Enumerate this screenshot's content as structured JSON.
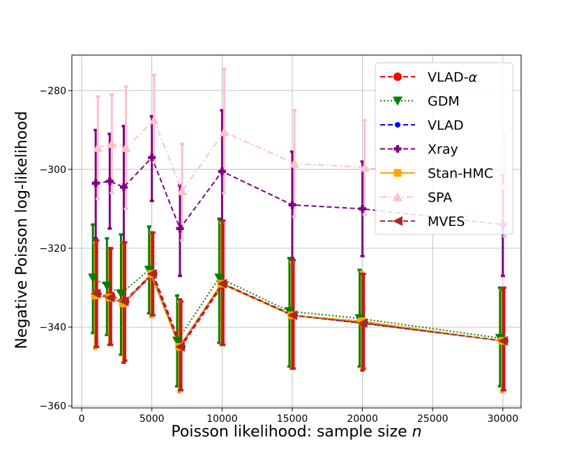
{
  "chart_data": {
    "type": "line",
    "title": "",
    "xlabel": "Poisson likelihood: sample size n",
    "xlabel_parts": [
      "Poisson likelihood: sample size ",
      "n"
    ],
    "ylabel": "Negative Poisson log-likelihood",
    "xlim": [
      -700,
      31300
    ],
    "ylim": [
      -360.5,
      -271
    ],
    "xticks": [
      0,
      5000,
      10000,
      15000,
      20000,
      25000,
      30000
    ],
    "xtick_labels": [
      "0",
      "5000",
      "10000",
      "15000",
      "20000",
      "25000",
      "30000"
    ],
    "yticks": [
      -360,
      -340,
      -320,
      -300,
      -280
    ],
    "ytick_labels": [
      "−360",
      "−340",
      "−320",
      "−300",
      "−280"
    ],
    "grid": true,
    "legend_position": "top-right",
    "x": [
      1000,
      2000,
      3000,
      5000,
      7000,
      10000,
      15000,
      20000,
      30000
    ],
    "series": [
      {
        "name": "VLAD-α",
        "legend_parts": [
          "VLAD-",
          "α"
        ],
        "color": "#ff0000",
        "marker": "circle",
        "linestyle": "dash",
        "offset": 100,
        "values": [
          -331.5,
          -332.0,
          -333.5,
          -326.5,
          -345.0,
          -329.0,
          -337.0,
          -338.8,
          -343.5
        ],
        "lower": [
          -345.0,
          -344.5,
          -348.5,
          -337.0,
          -356.0,
          -344.5,
          -350.5,
          -350.5,
          -356.0
        ],
        "upper": [
          -318.0,
          -320.0,
          -318.5,
          -316.0,
          -333.5,
          -313.0,
          -323.0,
          -326.5,
          -330.0
        ]
      },
      {
        "name": "GDM",
        "color": "#008000",
        "marker": "triangle-down",
        "linestyle": "dot",
        "offset": -200,
        "values": [
          -327.5,
          -329.5,
          -331.5,
          -325.5,
          -343.5,
          -327.5,
          -336.0,
          -337.8,
          -342.8
        ],
        "lower": [
          -341.5,
          -342.0,
          -347.0,
          -336.5,
          -355.0,
          -344.0,
          -350.0,
          -350.0,
          -355.0
        ],
        "upper": [
          -314.0,
          -317.5,
          -316.5,
          -314.5,
          -332.0,
          -312.5,
          -322.5,
          -325.5,
          -330.0
        ]
      },
      {
        "name": "VLAD",
        "color": "#0000ff",
        "marker": "dot",
        "linestyle": "dash",
        "offset": 0,
        "values": [
          -331.5,
          -332.5,
          -334.0,
          -326.5,
          -345.0,
          -329.0,
          -337.0,
          -339.0,
          -343.5
        ],
        "lower": [
          -345.0,
          -344.5,
          -349.0,
          -337.0,
          -356.0,
          -344.5,
          -350.5,
          -351.0,
          -356.0
        ],
        "upper": [
          -318.0,
          -320.0,
          -318.5,
          -316.0,
          -333.0,
          -313.0,
          -323.0,
          -326.5,
          -330.5
        ]
      },
      {
        "name": "Xray",
        "color": "#800080",
        "marker": "plus",
        "linestyle": "dash",
        "offset": 0,
        "values": [
          -303.5,
          -303.0,
          -304.5,
          -297.0,
          -315.0,
          -300.5,
          -309.0,
          -310.0,
          -314.0
        ],
        "lower": [
          -317.5,
          -315.0,
          -320.0,
          -308.0,
          -327.0,
          -316.0,
          -322.5,
          -322.0,
          -327.0
        ],
        "upper": [
          -290.0,
          -291.0,
          -289.0,
          -286.5,
          -304.0,
          -285.0,
          -295.5,
          -298.0,
          -301.5
        ]
      },
      {
        "name": "Stan-HMC",
        "color": "#ffa500",
        "marker": "square",
        "linestyle": "solid",
        "offset": -50,
        "values": [
          -332.0,
          -332.5,
          -334.0,
          -326.5,
          -345.0,
          -329.0,
          -337.0,
          -338.5,
          -343.5
        ],
        "lower": [
          -345.5,
          -344.5,
          -349.0,
          -337.5,
          -356.5,
          -344.5,
          -350.5,
          -350.5,
          -356.5
        ],
        "upper": [
          -318.5,
          -320.0,
          -318.5,
          -316.0,
          -333.5,
          -313.5,
          -323.5,
          -326.0,
          -330.5
        ]
      },
      {
        "name": "SPA",
        "color": "#ffc0cb",
        "marker": "triangle-up",
        "linestyle": "dashdot",
        "offset": 150,
        "values": [
          -294.5,
          -293.5,
          -294.5,
          -287.5,
          -305.5,
          -290.5,
          -298.5,
          -299.5,
          -304.0
        ],
        "lower": [
          -307.5,
          -306.0,
          -310.0,
          -298.0,
          -318.0,
          -306.0,
          -312.0,
          -311.5,
          -317.0
        ],
        "upper": [
          -281.5,
          -281.0,
          -279.0,
          -276.0,
          -293.5,
          -274.5,
          -285.0,
          -287.5,
          -291.0
        ]
      },
      {
        "name": "MVES",
        "color": "#a52a2a",
        "marker": "triangle-left",
        "linestyle": "dash",
        "offset": 0,
        "values": [
          -331.5,
          -332.5,
          -333.5,
          -326.5,
          -345.0,
          -329.0,
          -337.0,
          -339.0,
          -343.5
        ],
        "lower": [
          -345.0,
          -344.5,
          -349.0,
          -337.0,
          -356.0,
          -344.5,
          -350.5,
          -351.0,
          -356.0
        ],
        "upper": [
          -318.0,
          -320.0,
          -318.5,
          -316.0,
          -333.0,
          -313.0,
          -323.0,
          -326.5,
          -330.5
        ]
      }
    ]
  }
}
